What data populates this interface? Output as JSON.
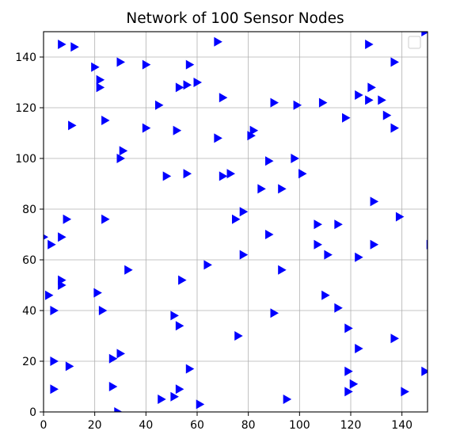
{
  "chart_data": {
    "type": "scatter",
    "title": "Network of 100 Sensor Nodes",
    "xlabel": "",
    "ylabel": "",
    "xlim": [
      0,
      150
    ],
    "ylim": [
      0,
      150
    ],
    "xticks": [
      0,
      20,
      40,
      60,
      80,
      100,
      120,
      140
    ],
    "yticks": [
      0,
      20,
      40,
      60,
      80,
      100,
      120,
      140
    ],
    "grid": true,
    "legend": {
      "placement": "upper-right",
      "entries": []
    },
    "marker": "triangle-right",
    "marker_color": "#0000ff",
    "series": [
      {
        "points": [
          [
            0,
            69
          ],
          [
            3,
            66
          ],
          [
            7,
            69
          ],
          [
            9,
            76
          ],
          [
            2,
            46
          ],
          [
            4,
            40
          ],
          [
            7,
            52
          ],
          [
            7,
            50
          ],
          [
            4,
            20
          ],
          [
            10,
            18
          ],
          [
            4,
            9
          ],
          [
            7,
            145
          ],
          [
            12,
            144
          ],
          [
            20,
            136
          ],
          [
            22,
            131
          ],
          [
            22,
            128
          ],
          [
            11,
            113
          ],
          [
            24,
            115
          ],
          [
            30,
            138
          ],
          [
            40,
            137
          ],
          [
            45,
            121
          ],
          [
            40,
            112
          ],
          [
            31,
            103
          ],
          [
            30,
            100
          ],
          [
            24,
            76
          ],
          [
            21,
            47
          ],
          [
            23,
            40
          ],
          [
            33,
            56
          ],
          [
            27,
            21
          ],
          [
            30,
            23
          ],
          [
            27,
            10
          ],
          [
            29,
            0
          ],
          [
            46,
            5
          ],
          [
            51,
            6
          ],
          [
            53,
            9
          ],
          [
            57,
            17
          ],
          [
            61,
            3
          ],
          [
            51,
            38
          ],
          [
            53,
            34
          ],
          [
            54,
            52
          ],
          [
            48,
            93
          ],
          [
            56,
            94
          ],
          [
            52,
            111
          ],
          [
            53,
            128
          ],
          [
            56,
            129
          ],
          [
            57,
            137
          ],
          [
            60,
            130
          ],
          [
            68,
            146
          ],
          [
            70,
            124
          ],
          [
            68,
            108
          ],
          [
            70,
            93
          ],
          [
            73,
            94
          ],
          [
            75,
            76
          ],
          [
            78,
            79
          ],
          [
            78,
            62
          ],
          [
            76,
            30
          ],
          [
            64,
            58
          ],
          [
            81,
            109
          ],
          [
            82,
            111
          ],
          [
            85,
            88
          ],
          [
            88,
            99
          ],
          [
            88,
            70
          ],
          [
            90,
            122
          ],
          [
            90,
            39
          ],
          [
            93,
            88
          ],
          [
            93,
            56
          ],
          [
            98,
            100
          ],
          [
            99,
            121
          ],
          [
            101,
            94
          ],
          [
            95,
            5
          ],
          [
            107,
            74
          ],
          [
            107,
            66
          ],
          [
            111,
            62
          ],
          [
            110,
            46
          ],
          [
            109,
            122
          ],
          [
            115,
            74
          ],
          [
            115,
            41
          ],
          [
            118,
            116
          ],
          [
            119,
            33
          ],
          [
            123,
            125
          ],
          [
            127,
            123
          ],
          [
            127,
            145
          ],
          [
            128,
            128
          ],
          [
            132,
            123
          ],
          [
            134,
            117
          ],
          [
            137,
            112
          ],
          [
            137,
            138
          ],
          [
            129,
            83
          ],
          [
            129,
            66
          ],
          [
            123,
            61
          ],
          [
            139,
            77
          ],
          [
            123,
            25
          ],
          [
            137,
            29
          ],
          [
            119,
            16
          ],
          [
            119,
            8
          ],
          [
            121,
            11
          ],
          [
            141,
            8
          ],
          [
            149,
            16
          ],
          [
            149,
            150
          ],
          [
            151,
            66
          ]
        ]
      }
    ]
  }
}
